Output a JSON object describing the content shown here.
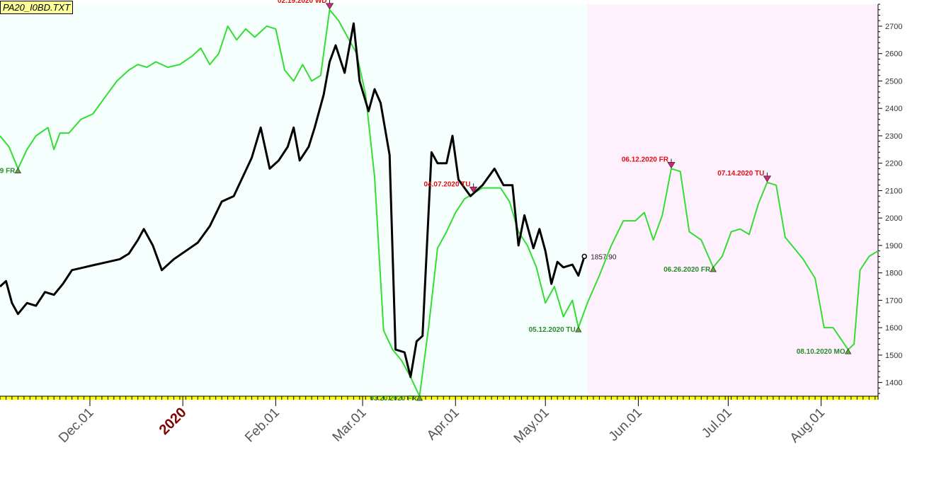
{
  "file_label": "PA20_I0BD.TXT",
  "colors": {
    "history_background": "#f5fffd",
    "forecast_background": "#fff0fd",
    "forecast_line": "#33dd33",
    "price_line": "#000000",
    "top_marker": "#e0207a",
    "bottom_marker": "#66aa33",
    "top_label": "#e01010",
    "bottom_label": "#2a8a2a",
    "year_label": "#800000",
    "axis_text": "#555555"
  },
  "chart_data": {
    "type": "line",
    "title": "",
    "xlabel": "",
    "ylabel": "",
    "ylim": [
      1350,
      2780
    ],
    "y_ticks": [
      1400,
      1500,
      1600,
      1700,
      1800,
      1900,
      2000,
      2100,
      2200,
      2300,
      2400,
      2500,
      2600,
      2700
    ],
    "y_axis_side": "right",
    "x_range": [
      "2019-11-01",
      "2020-08-20"
    ],
    "forecast_region_start": "2020-05-15",
    "x_tick_labels": [
      {
        "date": "2019-12-01",
        "label": "Dec.01",
        "style": "normal"
      },
      {
        "date": "2020-01-01",
        "label": "2020",
        "style": "year"
      },
      {
        "date": "2020-02-01",
        "label": "Feb.01",
        "style": "normal"
      },
      {
        "date": "2020-03-01",
        "label": "Mar.01",
        "style": "normal"
      },
      {
        "date": "2020-04-01",
        "label": "Apr.01",
        "style": "normal"
      },
      {
        "date": "2020-05-01",
        "label": "May.01",
        "style": "normal"
      },
      {
        "date": "2020-06-01",
        "label": "Jun.01",
        "style": "normal"
      },
      {
        "date": "2020-07-01",
        "label": "Jul.01",
        "style": "normal"
      },
      {
        "date": "2020-08-01",
        "label": "Aug.01",
        "style": "normal"
      }
    ],
    "last_price_label": "1857.90",
    "series": [
      {
        "role": "forecast",
        "points": [
          [
            "2019-11-01",
            2300
          ],
          [
            "2019-11-04",
            2260
          ],
          [
            "2019-11-07",
            2180
          ],
          [
            "2019-11-10",
            2250
          ],
          [
            "2019-11-13",
            2300
          ],
          [
            "2019-11-17",
            2330
          ],
          [
            "2019-11-19",
            2250
          ],
          [
            "2019-11-21",
            2310
          ],
          [
            "2019-11-24",
            2310
          ],
          [
            "2019-11-28",
            2360
          ],
          [
            "2019-12-02",
            2380
          ],
          [
            "2019-12-06",
            2440
          ],
          [
            "2019-12-10",
            2500
          ],
          [
            "2019-12-14",
            2540
          ],
          [
            "2019-12-17",
            2560
          ],
          [
            "2019-12-20",
            2550
          ],
          [
            "2019-12-23",
            2570
          ],
          [
            "2019-12-27",
            2550
          ],
          [
            "2019-12-31",
            2560
          ],
          [
            "2020-01-04",
            2590
          ],
          [
            "2020-01-07",
            2620
          ],
          [
            "2020-01-10",
            2560
          ],
          [
            "2020-01-13",
            2600
          ],
          [
            "2020-01-16",
            2700
          ],
          [
            "2020-01-19",
            2650
          ],
          [
            "2020-01-22",
            2690
          ],
          [
            "2020-01-25",
            2660
          ],
          [
            "2020-01-29",
            2700
          ],
          [
            "2020-02-01",
            2690
          ],
          [
            "2020-02-04",
            2540
          ],
          [
            "2020-02-07",
            2500
          ],
          [
            "2020-02-10",
            2560
          ],
          [
            "2020-02-13",
            2500
          ],
          [
            "2020-02-16",
            2520
          ],
          [
            "2020-02-19",
            2760
          ],
          [
            "2020-02-22",
            2720
          ],
          [
            "2020-02-25",
            2660
          ],
          [
            "2020-02-28",
            2600
          ],
          [
            "2020-03-02",
            2450
          ],
          [
            "2020-03-05",
            2150
          ],
          [
            "2020-03-08",
            1590
          ],
          [
            "2020-03-11",
            1520
          ],
          [
            "2020-03-14",
            1480
          ],
          [
            "2020-03-17",
            1420
          ],
          [
            "2020-03-20",
            1350
          ],
          [
            "2020-03-23",
            1600
          ],
          [
            "2020-03-26",
            1890
          ],
          [
            "2020-03-29",
            1950
          ],
          [
            "2020-04-01",
            2020
          ],
          [
            "2020-04-04",
            2070
          ],
          [
            "2020-04-07",
            2090
          ],
          [
            "2020-04-10",
            2110
          ],
          [
            "2020-04-13",
            2110
          ],
          [
            "2020-04-16",
            2110
          ],
          [
            "2020-04-19",
            2060
          ],
          [
            "2020-04-22",
            1950
          ],
          [
            "2020-04-25",
            1900
          ],
          [
            "2020-04-28",
            1820
          ],
          [
            "2020-05-01",
            1690
          ],
          [
            "2020-05-04",
            1750
          ],
          [
            "2020-05-07",
            1640
          ],
          [
            "2020-05-10",
            1700
          ],
          [
            "2020-05-12",
            1600
          ],
          [
            "2020-05-15",
            1690
          ],
          [
            "2020-05-19",
            1790
          ],
          [
            "2020-05-23",
            1900
          ],
          [
            "2020-05-27",
            1990
          ],
          [
            "2020-05-31",
            1990
          ],
          [
            "2020-06-03",
            2020
          ],
          [
            "2020-06-06",
            1920
          ],
          [
            "2020-06-09",
            2010
          ],
          [
            "2020-06-12",
            2180
          ],
          [
            "2020-06-15",
            2170
          ],
          [
            "2020-06-18",
            1950
          ],
          [
            "2020-06-22",
            1920
          ],
          [
            "2020-06-26",
            1820
          ],
          [
            "2020-06-29",
            1860
          ],
          [
            "2020-07-02",
            1950
          ],
          [
            "2020-07-05",
            1960
          ],
          [
            "2020-07-08",
            1940
          ],
          [
            "2020-07-11",
            2050
          ],
          [
            "2020-07-14",
            2130
          ],
          [
            "2020-07-17",
            2120
          ],
          [
            "2020-07-20",
            1930
          ],
          [
            "2020-07-23",
            1890
          ],
          [
            "2020-07-26",
            1850
          ],
          [
            "2020-07-30",
            1780
          ],
          [
            "2020-08-02",
            1600
          ],
          [
            "2020-08-05",
            1600
          ],
          [
            "2020-08-10",
            1520
          ],
          [
            "2020-08-12",
            1540
          ],
          [
            "2020-08-14",
            1810
          ],
          [
            "2020-08-17",
            1860
          ],
          [
            "2020-08-20",
            1880
          ]
        ]
      },
      {
        "role": "price",
        "points": [
          [
            "2019-11-01",
            1750
          ],
          [
            "2019-11-03",
            1770
          ],
          [
            "2019-11-05",
            1690
          ],
          [
            "2019-11-07",
            1650
          ],
          [
            "2019-11-10",
            1690
          ],
          [
            "2019-11-13",
            1680
          ],
          [
            "2019-11-16",
            1730
          ],
          [
            "2019-11-19",
            1720
          ],
          [
            "2019-11-22",
            1760
          ],
          [
            "2019-11-25",
            1810
          ],
          [
            "2019-11-29",
            1820
          ],
          [
            "2019-12-03",
            1830
          ],
          [
            "2019-12-07",
            1840
          ],
          [
            "2019-12-11",
            1850
          ],
          [
            "2019-12-14",
            1870
          ],
          [
            "2019-12-17",
            1920
          ],
          [
            "2019-12-19",
            1960
          ],
          [
            "2019-12-22",
            1900
          ],
          [
            "2019-12-25",
            1810
          ],
          [
            "2019-12-29",
            1850
          ],
          [
            "2020-01-02",
            1880
          ],
          [
            "2020-01-06",
            1910
          ],
          [
            "2020-01-10",
            1970
          ],
          [
            "2020-01-14",
            2060
          ],
          [
            "2020-01-18",
            2080
          ],
          [
            "2020-01-21",
            2150
          ],
          [
            "2020-01-24",
            2220
          ],
          [
            "2020-01-27",
            2330
          ],
          [
            "2020-01-30",
            2180
          ],
          [
            "2020-02-02",
            2210
          ],
          [
            "2020-02-05",
            2260
          ],
          [
            "2020-02-07",
            2330
          ],
          [
            "2020-02-09",
            2210
          ],
          [
            "2020-02-12",
            2260
          ],
          [
            "2020-02-14",
            2330
          ],
          [
            "2020-02-17",
            2450
          ],
          [
            "2020-02-19",
            2570
          ],
          [
            "2020-02-21",
            2630
          ],
          [
            "2020-02-24",
            2530
          ],
          [
            "2020-02-27",
            2710
          ],
          [
            "2020-02-29",
            2500
          ],
          [
            "2020-03-03",
            2390
          ],
          [
            "2020-03-05",
            2470
          ],
          [
            "2020-03-07",
            2420
          ],
          [
            "2020-03-10",
            2230
          ],
          [
            "2020-03-12",
            1520
          ],
          [
            "2020-03-15",
            1510
          ],
          [
            "2020-03-17",
            1420
          ],
          [
            "2020-03-19",
            1550
          ],
          [
            "2020-03-21",
            1570
          ],
          [
            "2020-03-24",
            2240
          ],
          [
            "2020-03-26",
            2200
          ],
          [
            "2020-03-29",
            2200
          ],
          [
            "2020-03-31",
            2300
          ],
          [
            "2020-04-02",
            2140
          ],
          [
            "2020-04-06",
            2080
          ],
          [
            "2020-04-10",
            2120
          ],
          [
            "2020-04-14",
            2180
          ],
          [
            "2020-04-17",
            2120
          ],
          [
            "2020-04-20",
            2120
          ],
          [
            "2020-04-22",
            1900
          ],
          [
            "2020-04-24",
            2010
          ],
          [
            "2020-04-27",
            1890
          ],
          [
            "2020-04-29",
            1960
          ],
          [
            "2020-05-01",
            1880
          ],
          [
            "2020-05-03",
            1760
          ],
          [
            "2020-05-05",
            1840
          ],
          [
            "2020-05-07",
            1820
          ],
          [
            "2020-05-10",
            1830
          ],
          [
            "2020-05-12",
            1790
          ],
          [
            "2020-05-14",
            1860
          ]
        ]
      }
    ],
    "annotations": [
      {
        "kind": "bottom",
        "date": "2019-11-07",
        "value": 2180,
        "label": "9 FR",
        "label_side": "left"
      },
      {
        "kind": "top",
        "date": "2020-02-19",
        "value": 2760,
        "label": "02.19.2020 WD",
        "label_side": "left"
      },
      {
        "kind": "bottom",
        "date": "2020-03-20",
        "value": 1350,
        "label": "03.20.2020 FR",
        "label_side": "left"
      },
      {
        "kind": "top",
        "date": "2020-04-07",
        "value": 2090,
        "label": "04.07.2020 TU",
        "label_side": "left"
      },
      {
        "kind": "bottom",
        "date": "2020-05-12",
        "value": 1600,
        "label": "05.12.2020 TU",
        "label_side": "left"
      },
      {
        "kind": "top",
        "date": "2020-06-12",
        "value": 2180,
        "label": "06.12.2020 FR",
        "label_side": "left"
      },
      {
        "kind": "bottom",
        "date": "2020-06-26",
        "value": 1820,
        "label": "06.26.2020 FR",
        "label_side": "left"
      },
      {
        "kind": "top",
        "date": "2020-07-14",
        "value": 2130,
        "label": "07.14.2020 TU",
        "label_side": "left"
      },
      {
        "kind": "bottom",
        "date": "2020-08-10",
        "value": 1520,
        "label": "08.10.2020 MO",
        "label_side": "left"
      }
    ]
  }
}
